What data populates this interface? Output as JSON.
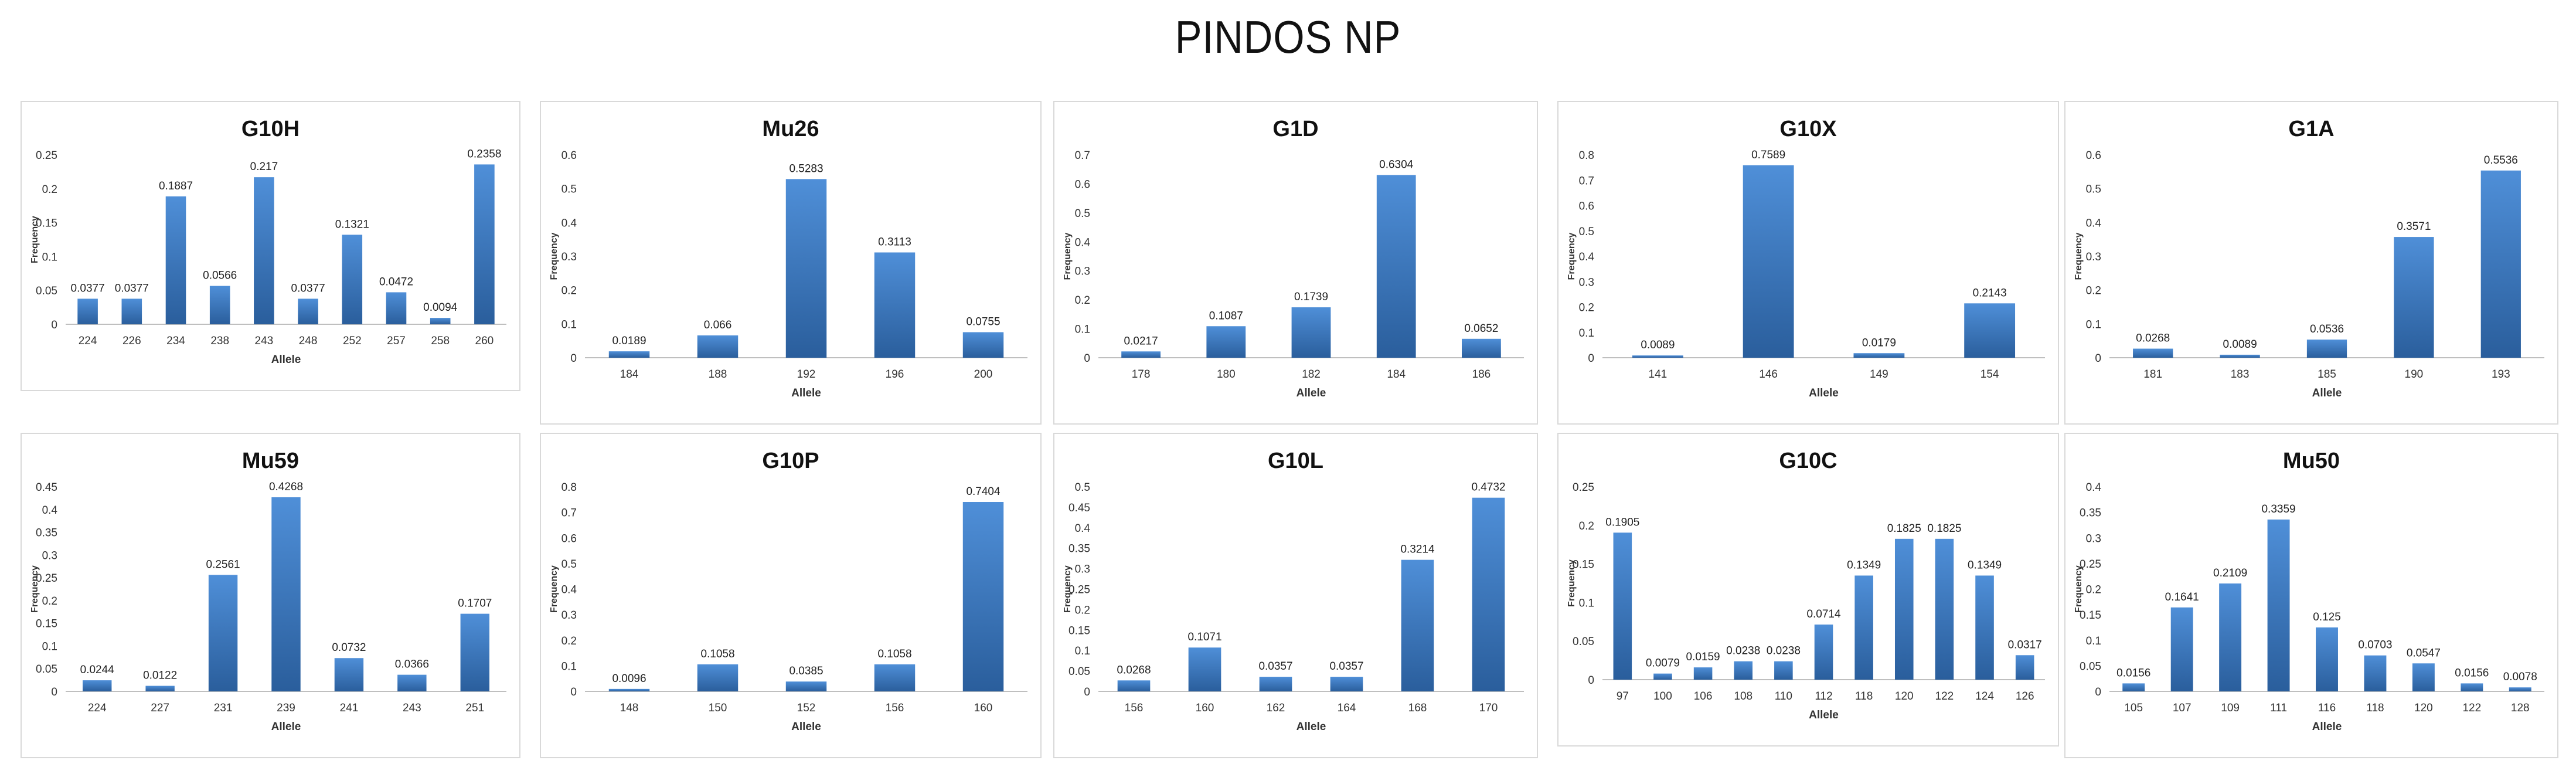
{
  "title": "PINDOS NP",
  "colors": {
    "bar_top": "#4f8fd8",
    "bar_bottom": "#2a5e9c",
    "axis": "#bfbfbf",
    "border": "#d9d9d9"
  },
  "chart_data": [
    {
      "type": "bar",
      "title": "G10H",
      "xlabel": "Allele",
      "ylabel": "Frequency",
      "ylim": [
        0,
        0.25
      ],
      "yticks": [
        "0",
        "0.05",
        "0.1",
        "0.15",
        "0.2",
        "0.25"
      ],
      "categories": [
        "224",
        "226",
        "234",
        "238",
        "243",
        "248",
        "252",
        "257",
        "258",
        "260"
      ],
      "values": [
        0.0377,
        0.0377,
        0.1887,
        0.0566,
        0.217,
        0.0377,
        0.1321,
        0.0472,
        0.0094,
        0.2358
      ],
      "labels": [
        "0.0377",
        "0.0377",
        "0.1887",
        "0.0566",
        "0.217",
        "0.0377",
        "0.1321",
        "0.0472",
        "0.0094",
        "0.2358"
      ]
    },
    {
      "type": "bar",
      "title": "Mu26",
      "xlabel": "Allele",
      "ylabel": "Frequency",
      "ylim": [
        0,
        0.6
      ],
      "yticks": [
        "0",
        "0.1",
        "0.2",
        "0.3",
        "0.4",
        "0.5",
        "0.6"
      ],
      "categories": [
        "184",
        "188",
        "192",
        "196",
        "200"
      ],
      "values": [
        0.0189,
        0.066,
        0.5283,
        0.3113,
        0.0755
      ],
      "labels": [
        "0.0189",
        "0.066",
        "0.5283",
        "0.3113",
        "0.0755"
      ]
    },
    {
      "type": "bar",
      "title": "G1D",
      "xlabel": "Allele",
      "ylabel": "Frequency",
      "ylim": [
        0,
        0.7
      ],
      "yticks": [
        "0",
        "0.1",
        "0.2",
        "0.3",
        "0.4",
        "0.5",
        "0.6",
        "0.7"
      ],
      "categories": [
        "178",
        "180",
        "182",
        "184",
        "186"
      ],
      "values": [
        0.0217,
        0.1087,
        0.1739,
        0.6304,
        0.0652
      ],
      "labels": [
        "0.0217",
        "0.1087",
        "0.1739",
        "0.6304",
        "0.0652"
      ]
    },
    {
      "type": "bar",
      "title": "G10X",
      "xlabel": "Allele",
      "ylabel": "Frequency",
      "ylim": [
        0,
        0.8
      ],
      "yticks": [
        "0",
        "0.1",
        "0.2",
        "0.3",
        "0.4",
        "0.5",
        "0.6",
        "0.7",
        "0.8"
      ],
      "categories": [
        "141",
        "146",
        "149",
        "154"
      ],
      "values": [
        0.0089,
        0.7589,
        0.0179,
        0.2143
      ],
      "labels": [
        "0.0089",
        "0.7589",
        "0.0179",
        "0.2143"
      ]
    },
    {
      "type": "bar",
      "title": "G1A",
      "xlabel": "Allele",
      "ylabel": "Frequency",
      "ylim": [
        0,
        0.6
      ],
      "yticks": [
        "0",
        "0.1",
        "0.2",
        "0.3",
        "0.4",
        "0.5",
        "0.6"
      ],
      "categories": [
        "181",
        "183",
        "185",
        "190",
        "193"
      ],
      "values": [
        0.0268,
        0.0089,
        0.0536,
        0.3571,
        0.5536
      ],
      "labels": [
        "0.0268",
        "0.0089",
        "0.0536",
        "0.3571",
        "0.5536"
      ]
    },
    {
      "type": "bar",
      "title": "Mu59",
      "xlabel": "Allele",
      "ylabel": "Frequency",
      "ylim": [
        0,
        0.45
      ],
      "yticks": [
        "0",
        "0.05",
        "0.1",
        "0.15",
        "0.2",
        "0.25",
        "0.3",
        "0.35",
        "0.4",
        "0.45"
      ],
      "categories": [
        "224",
        "227",
        "231",
        "239",
        "241",
        "243",
        "251"
      ],
      "values": [
        0.0244,
        0.0122,
        0.2561,
        0.4268,
        0.0732,
        0.0366,
        0.1707
      ],
      "labels": [
        "0.0244",
        "0.0122",
        "0.2561",
        "0.4268",
        "0.0732",
        "0.0366",
        "0.1707"
      ]
    },
    {
      "type": "bar",
      "title": "G10P",
      "xlabel": "Allele",
      "ylabel": "Frequency",
      "ylim": [
        0,
        0.8
      ],
      "yticks": [
        "0",
        "0.1",
        "0.2",
        "0.3",
        "0.4",
        "0.5",
        "0.6",
        "0.7",
        "0.8"
      ],
      "categories": [
        "148",
        "150",
        "152",
        "156",
        "160"
      ],
      "values": [
        0.0096,
        0.1058,
        0.0385,
        0.1058,
        0.7404
      ],
      "labels": [
        "0.0096",
        "0.1058",
        "0.0385",
        "0.1058",
        "0.7404"
      ]
    },
    {
      "type": "bar",
      "title": "G10L",
      "xlabel": "Allele",
      "ylabel": "Frequency",
      "ylim": [
        0,
        0.5
      ],
      "yticks": [
        "0",
        "0.05",
        "0.1",
        "0.15",
        "0.2",
        "0.25",
        "0.3",
        "0.35",
        "0.4",
        "0.45",
        "0.5"
      ],
      "categories": [
        "156",
        "160",
        "162",
        "164",
        "168",
        "170"
      ],
      "values": [
        0.0268,
        0.1071,
        0.0357,
        0.0357,
        0.3214,
        0.4732
      ],
      "labels": [
        "0.0268",
        "0.1071",
        "0.0357",
        "0.0357",
        "0.3214",
        "0.4732"
      ]
    },
    {
      "type": "bar",
      "title": "G10C",
      "xlabel": "Allele",
      "ylabel": "Frequency",
      "ylim": [
        0,
        0.25
      ],
      "yticks": [
        "0",
        "0.05",
        "0.1",
        "0.15",
        "0.2",
        "0.25"
      ],
      "categories": [
        "97",
        "100",
        "106",
        "108",
        "110",
        "112",
        "118",
        "120",
        "122",
        "124",
        "126"
      ],
      "values": [
        0.1905,
        0.0079,
        0.0159,
        0.0238,
        0.0238,
        0.0714,
        0.1349,
        0.1825,
        0.1825,
        0.1349,
        0.0317
      ],
      "labels": [
        "0.1905",
        "0.0079",
        "0.0159",
        "0.0238",
        "0.0238",
        "0.0714",
        "0.1349",
        "0.1825",
        "0.1825",
        "0.1349",
        "0.0317"
      ]
    },
    {
      "type": "bar",
      "title": "Mu50",
      "xlabel": "Allele",
      "ylabel": "Frequency",
      "ylim": [
        0,
        0.4
      ],
      "yticks": [
        "0",
        "0.05",
        "0.1",
        "0.15",
        "0.2",
        "0.25",
        "0.3",
        "0.35",
        "0.4"
      ],
      "categories": [
        "105",
        "107",
        "109",
        "111",
        "116",
        "118",
        "120",
        "122",
        "128"
      ],
      "values": [
        0.0156,
        0.1641,
        0.2109,
        0.3359,
        0.125,
        0.0703,
        0.0547,
        0.0156,
        0.0078
      ],
      "labels": [
        "0.0156",
        "0.1641",
        "0.2109",
        "0.3359",
        "0.125",
        "0.0703",
        "0.0547",
        "0.0156",
        "0.0078"
      ]
    }
  ]
}
